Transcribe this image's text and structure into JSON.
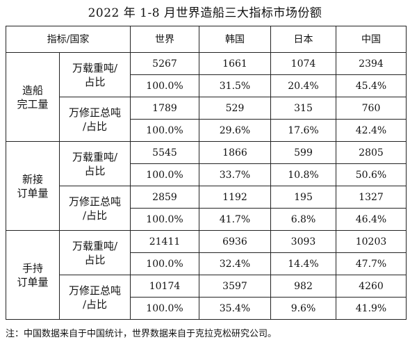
{
  "title": "2022 年 1-8 月世界造船三大指标市场份额",
  "header": [
    "指标/国家",
    "世界",
    "韩国",
    "日本",
    "中国"
  ],
  "groups": [
    {
      "name": [
        "造船",
        "完工量"
      ],
      "metrics": [
        {
          "label": [
            "万载重吨/",
            "占比"
          ],
          "values": [
            "5267",
            "1661",
            "1074",
            "2394"
          ],
          "shares": [
            "100.0%",
            "31.5%",
            "20.4%",
            "45.4%"
          ]
        },
        {
          "label": [
            "万修正总吨",
            "/占比"
          ],
          "values": [
            "1789",
            "529",
            "315",
            "760"
          ],
          "shares": [
            "100.0%",
            "29.6%",
            "17.6%",
            "42.4%"
          ]
        }
      ]
    },
    {
      "name": [
        "新接",
        "订单量"
      ],
      "metrics": [
        {
          "label": [
            "万载重吨/",
            "占比"
          ],
          "values": [
            "5545",
            "1866",
            "599",
            "2805"
          ],
          "shares": [
            "100.0%",
            "33.7%",
            "10.8%",
            "50.6%"
          ]
        },
        {
          "label": [
            "万修正总吨",
            "/占比"
          ],
          "values": [
            "2859",
            "1192",
            "195",
            "1327"
          ],
          "shares": [
            "100.0%",
            "41.7%",
            "6.8%",
            "46.4%"
          ]
        }
      ]
    },
    {
      "name": [
        "手持",
        "订单量"
      ],
      "metrics": [
        {
          "label": [
            "万载重吨/",
            "占比"
          ],
          "values": [
            "21411",
            "6936",
            "3093",
            "10203"
          ],
          "shares": [
            "100.0%",
            "32.4%",
            "14.4%",
            "47.7%"
          ]
        },
        {
          "label": [
            "万修正总吨",
            "/占比"
          ],
          "values": [
            "10174",
            "3597",
            "982",
            "4260"
          ],
          "shares": [
            "100.0%",
            "35.4%",
            "9.6%",
            "41.9%"
          ]
        }
      ]
    }
  ],
  "note": "注：中国数据来自于中国统计，世界数据来自于克拉克松研究公司。"
}
